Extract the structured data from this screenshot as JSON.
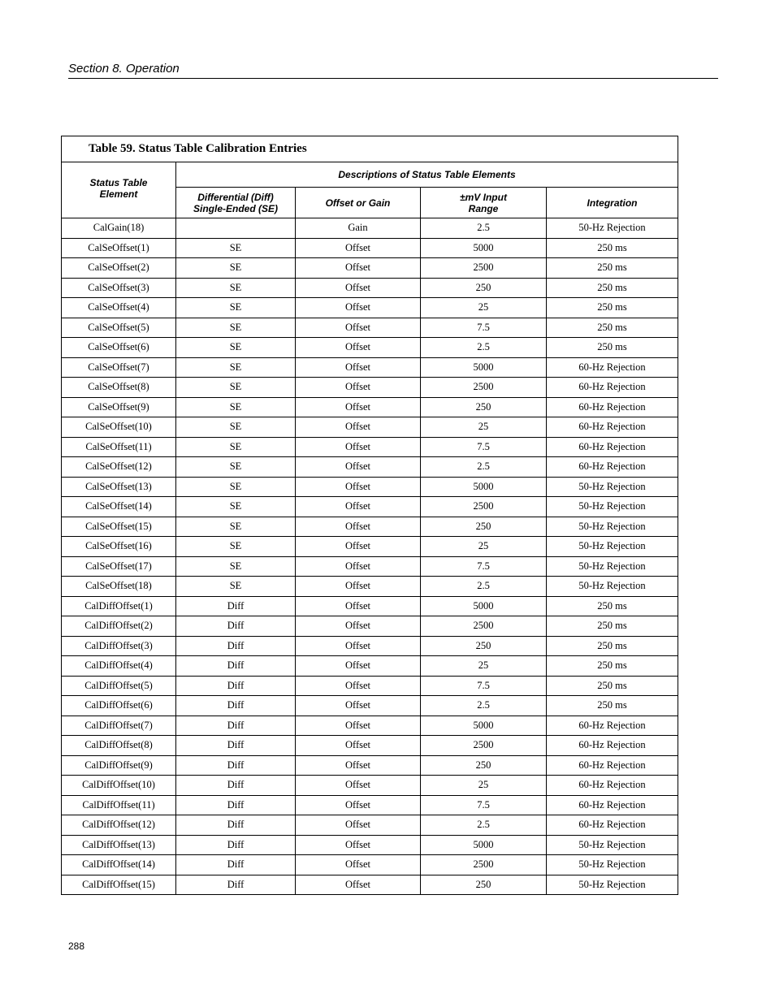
{
  "page": {
    "section_header": "Section 8.  Operation",
    "page_number": "288"
  },
  "table": {
    "title": "Table 59. Status Table Calibration Entries",
    "header_element": "Status Table\nElement",
    "header_group": "Descriptions of Status Table Elements",
    "columns": [
      "Differential (Diff)\nSingle-Ended (SE)",
      "Offset or Gain",
      "±mV Input\nRange",
      "Integration"
    ],
    "rows": [
      [
        "CalGain(18)",
        "",
        "Gain",
        "2.5",
        "50-Hz Rejection"
      ],
      [
        "CalSeOffset(1)",
        "SE",
        "Offset",
        "5000",
        "250 ms"
      ],
      [
        "CalSeOffset(2)",
        "SE",
        "Offset",
        "2500",
        "250 ms"
      ],
      [
        "CalSeOffset(3)",
        "SE",
        "Offset",
        "250",
        "250 ms"
      ],
      [
        "CalSeOffset(4)",
        "SE",
        "Offset",
        "25",
        "250 ms"
      ],
      [
        "CalSeOffset(5)",
        "SE",
        "Offset",
        "7.5",
        "250 ms"
      ],
      [
        "CalSeOffset(6)",
        "SE",
        "Offset",
        "2.5",
        "250 ms"
      ],
      [
        "CalSeOffset(7)",
        "SE",
        "Offset",
        "5000",
        "60-Hz Rejection"
      ],
      [
        "CalSeOffset(8)",
        "SE",
        "Offset",
        "2500",
        "60-Hz Rejection"
      ],
      [
        "CalSeOffset(9)",
        "SE",
        "Offset",
        "250",
        "60-Hz Rejection"
      ],
      [
        "CalSeOffset(10)",
        "SE",
        "Offset",
        "25",
        "60-Hz Rejection"
      ],
      [
        "CalSeOffset(11)",
        "SE",
        "Offset",
        "7.5",
        "60-Hz Rejection"
      ],
      [
        "CalSeOffset(12)",
        "SE",
        "Offset",
        "2.5",
        "60-Hz Rejection"
      ],
      [
        "CalSeOffset(13)",
        "SE",
        "Offset",
        "5000",
        "50-Hz Rejection"
      ],
      [
        "CalSeOffset(14)",
        "SE",
        "Offset",
        "2500",
        "50-Hz Rejection"
      ],
      [
        "CalSeOffset(15)",
        "SE",
        "Offset",
        "250",
        "50-Hz Rejection"
      ],
      [
        "CalSeOffset(16)",
        "SE",
        "Offset",
        "25",
        "50-Hz Rejection"
      ],
      [
        "CalSeOffset(17)",
        "SE",
        "Offset",
        "7.5",
        "50-Hz Rejection"
      ],
      [
        "CalSeOffset(18)",
        "SE",
        "Offset",
        "2.5",
        "50-Hz Rejection"
      ],
      [
        "CalDiffOffset(1)",
        "Diff",
        "Offset",
        "5000",
        "250 ms"
      ],
      [
        "CalDiffOffset(2)",
        "Diff",
        "Offset",
        "2500",
        "250 ms"
      ],
      [
        "CalDiffOffset(3)",
        "Diff",
        "Offset",
        "250",
        "250 ms"
      ],
      [
        "CalDiffOffset(4)",
        "Diff",
        "Offset",
        "25",
        "250 ms"
      ],
      [
        "CalDiffOffset(5)",
        "Diff",
        "Offset",
        "7.5",
        "250 ms"
      ],
      [
        "CalDiffOffset(6)",
        "Diff",
        "Offset",
        "2.5",
        "250 ms"
      ],
      [
        "CalDiffOffset(7)",
        "Diff",
        "Offset",
        "5000",
        "60-Hz Rejection"
      ],
      [
        "CalDiffOffset(8)",
        "Diff",
        "Offset",
        "2500",
        "60-Hz Rejection"
      ],
      [
        "CalDiffOffset(9)",
        "Diff",
        "Offset",
        "250",
        "60-Hz Rejection"
      ],
      [
        "CalDiffOffset(10)",
        "Diff",
        "Offset",
        "25",
        "60-Hz Rejection"
      ],
      [
        "CalDiffOffset(11)",
        "Diff",
        "Offset",
        "7.5",
        "60-Hz Rejection"
      ],
      [
        "CalDiffOffset(12)",
        "Diff",
        "Offset",
        "2.5",
        "60-Hz Rejection"
      ],
      [
        "CalDiffOffset(13)",
        "Diff",
        "Offset",
        "5000",
        "50-Hz Rejection"
      ],
      [
        "CalDiffOffset(14)",
        "Diff",
        "Offset",
        "2500",
        "50-Hz Rejection"
      ],
      [
        "CalDiffOffset(15)",
        "Diff",
        "Offset",
        "250",
        "50-Hz Rejection"
      ]
    ]
  }
}
